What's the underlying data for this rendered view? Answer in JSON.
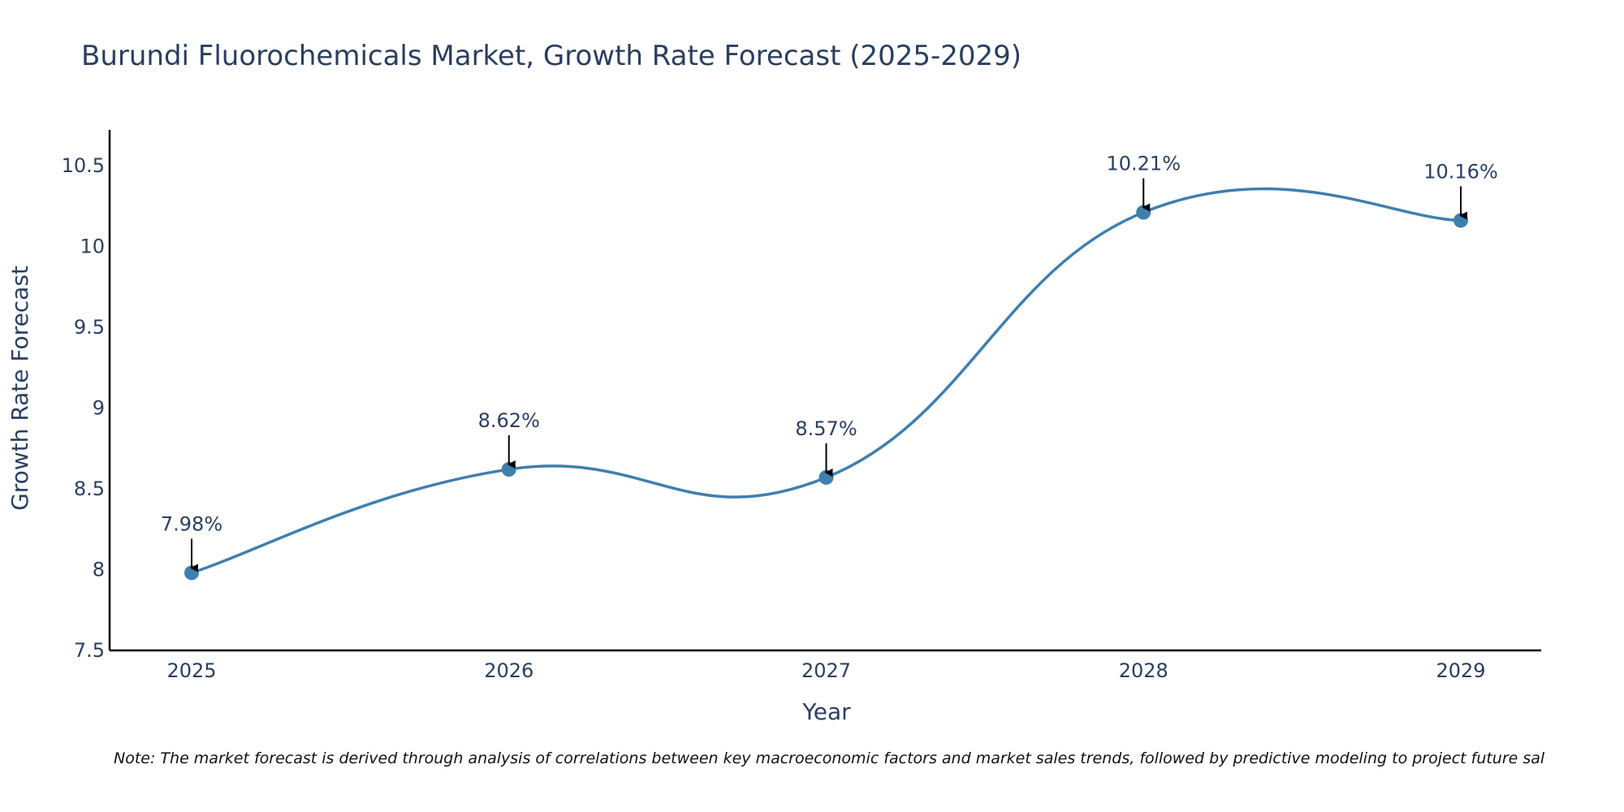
{
  "chart_data": {
    "type": "line",
    "title": "Burundi Fluorochemicals Market, Growth Rate Forecast (2025-2029)",
    "xlabel": "Year",
    "ylabel": "Growth Rate Forecast",
    "categories": [
      "2025",
      "2026",
      "2027",
      "2028",
      "2029"
    ],
    "values": [
      7.98,
      8.62,
      8.57,
      10.21,
      10.16
    ],
    "data_labels": [
      "7.98%",
      "8.62%",
      "8.57%",
      "10.21%",
      "10.16%"
    ],
    "ylim": [
      7.5,
      10.72
    ],
    "yticks": [
      7.5,
      8,
      8.5,
      9,
      9.5,
      10,
      10.5
    ],
    "ytick_labels": [
      "7.5",
      "8",
      "8.5",
      "9",
      "9.5",
      "10",
      "10.5"
    ],
    "line_shape": "spline",
    "grid": false,
    "legend": "none",
    "line_color": "#3f7fad",
    "marker_color": "#3f7fad",
    "note": "Note: The market forecast is derived through analysis of correlations between key macroeconomic factors and market sales trends, followed by predictive modeling to project future sal"
  }
}
